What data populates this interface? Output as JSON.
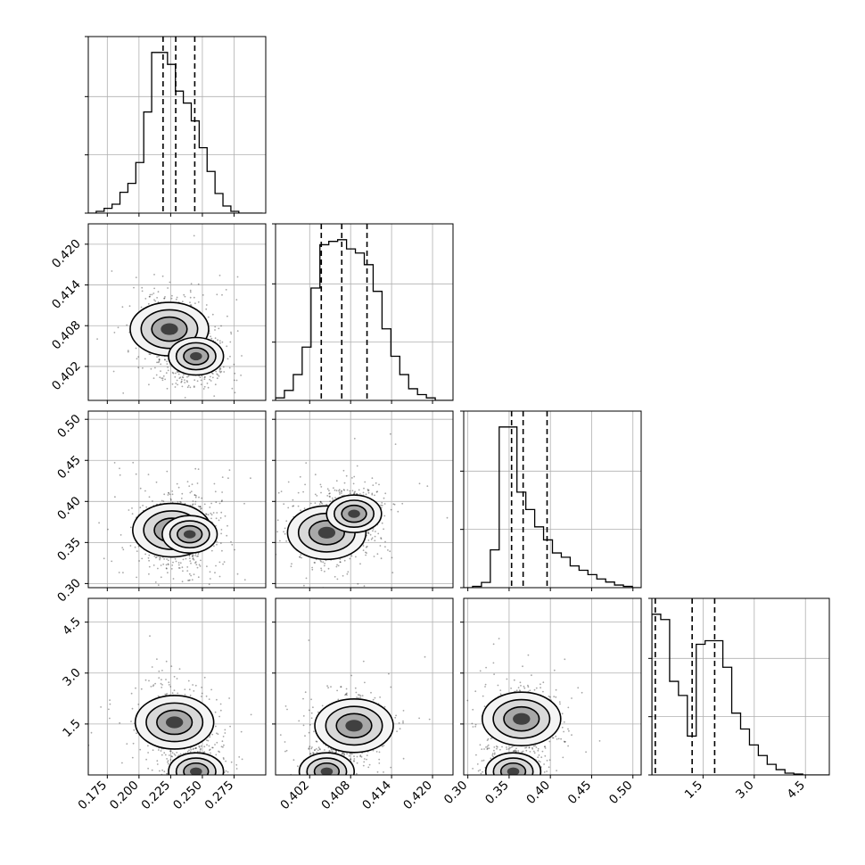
{
  "chart_data": {
    "type": "corner",
    "parameters": 4,
    "parameter_labels": [
      "",
      "",
      "",
      ""
    ],
    "grid": true,
    "ranges": [
      [
        0.16,
        0.3
      ],
      [
        0.397,
        0.423
      ],
      [
        0.295,
        0.51
      ],
      [
        0.0,
        5.2
      ]
    ],
    "ticks": [
      [
        "0.175",
        "0.200",
        "0.225",
        "0.250",
        "0.275"
      ],
      [
        "0.402",
        "0.408",
        "0.414",
        "0.420"
      ],
      [
        "0.30",
        "0.35",
        "0.40",
        "0.45",
        "0.50"
      ],
      [
        "1.5",
        "3.0",
        "4.5"
      ]
    ],
    "tick_values": [
      [
        0.175,
        0.2,
        0.225,
        0.25,
        0.275
      ],
      [
        0.402,
        0.408,
        0.414,
        0.42
      ],
      [
        0.3,
        0.35,
        0.4,
        0.45,
        0.5
      ],
      [
        1.5,
        3.0,
        4.5
      ]
    ],
    "quantiles": [
      [
        0.219,
        0.229,
        0.244
      ],
      [
        0.4037,
        0.4067,
        0.4104
      ],
      [
        0.353,
        0.367,
        0.396
      ],
      [
        0.1,
        1.18,
        1.84
      ]
    ],
    "histograms": [
      {
        "edges_start": 0.16,
        "bin_width": 0.00625,
        "counts": [
          0,
          0.3,
          0.8,
          1.5,
          3.5,
          5.0,
          8.5,
          17,
          27,
          27,
          25,
          20.5,
          18.5,
          15.5,
          11,
          7,
          3.3,
          1.2,
          0.3,
          0,
          0,
          0
        ]
      },
      {
        "edges_start": 0.397,
        "bin_width": 0.0013,
        "counts": [
          0.3,
          1.2,
          3.1,
          6.4,
          13.5,
          18.7,
          19.1,
          19.3,
          18.2,
          17.7,
          16.3,
          13.1,
          8.6,
          5.3,
          3.1,
          1.4,
          0.7,
          0.3,
          0,
          0
        ]
      },
      {
        "edges_start": 0.295,
        "bin_width": 0.01075,
        "counts": [
          0,
          0.3,
          1.2,
          8.7,
          37,
          37,
          22,
          18,
          14,
          11,
          8,
          7,
          5,
          4,
          3,
          2,
          1.3,
          0.6,
          0.3,
          0,
          0,
          0
        ]
      },
      {
        "edges_start": 0.0,
        "bin_width": 0.26,
        "counts": [
          9.1,
          8.8,
          5.3,
          4.5,
          2.2,
          7.4,
          7.6,
          7.6,
          6.1,
          3.5,
          2.6,
          1.7,
          1.1,
          0.6,
          0.3,
          0.1,
          0.05,
          0,
          0,
          0
        ]
      }
    ],
    "modes_2d": [
      {
        "pair": [
          0,
          1
        ],
        "centers": [
          [
            0.224,
            0.4075
          ],
          [
            0.245,
            0.4035
          ]
        ]
      },
      {
        "pair": [
          0,
          2
        ],
        "centers": [
          [
            0.226,
            0.365
          ],
          [
            0.24,
            0.36
          ]
        ]
      },
      {
        "pair": [
          0,
          3
        ],
        "centers": [
          [
            0.228,
            1.55
          ],
          [
            0.245,
            0.1
          ]
        ]
      },
      {
        "pair": [
          1,
          2
        ],
        "centers": [
          [
            0.4045,
            0.362
          ],
          [
            0.4085,
            0.385
          ]
        ]
      },
      {
        "pair": [
          1,
          3
        ],
        "centers": [
          [
            0.4085,
            1.45
          ],
          [
            0.4045,
            0.1
          ]
        ]
      },
      {
        "pair": [
          2,
          3
        ],
        "centers": [
          [
            0.365,
            1.65
          ],
          [
            0.355,
            0.1
          ]
        ]
      }
    ]
  }
}
